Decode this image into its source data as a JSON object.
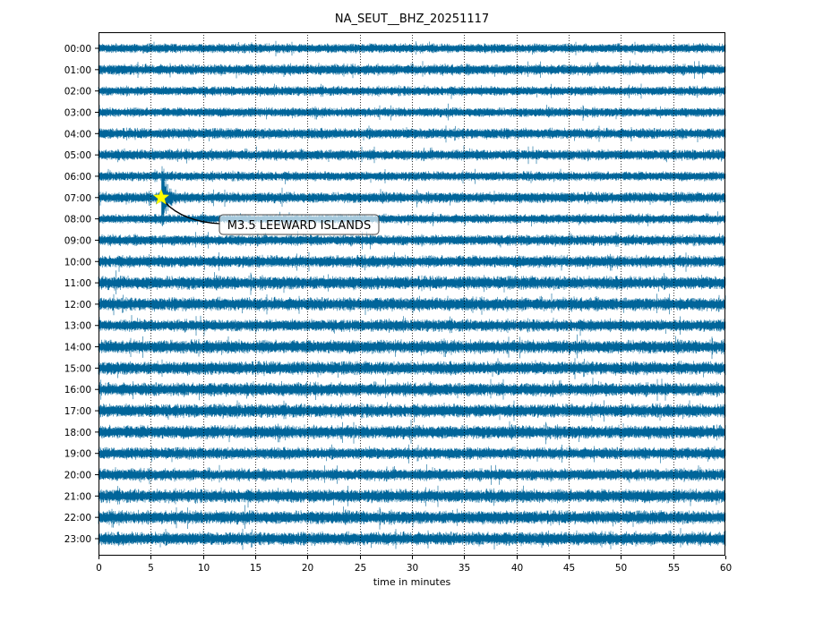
{
  "chart_data": {
    "type": "line",
    "subtype": "helicorder-dayplot",
    "title": "NA_SEUT__BHZ_20251117",
    "xlabel": "time in minutes",
    "ylabel": "",
    "xlim": [
      0,
      60
    ],
    "xticks": [
      0,
      5,
      10,
      15,
      20,
      25,
      30,
      35,
      40,
      45,
      50,
      55,
      60
    ],
    "grid": "vertical-dotted",
    "rows": [
      "00:00",
      "01:00",
      "02:00",
      "03:00",
      "04:00",
      "05:00",
      "06:00",
      "07:00",
      "08:00",
      "09:00",
      "10:00",
      "11:00",
      "12:00",
      "13:00",
      "14:00",
      "15:00",
      "16:00",
      "17:00",
      "18:00",
      "19:00",
      "20:00",
      "21:00",
      "22:00",
      "23:00"
    ],
    "row_noise_level": [
      0.7,
      0.8,
      0.7,
      0.7,
      0.8,
      0.8,
      0.7,
      0.8,
      0.7,
      0.8,
      0.9,
      1.0,
      1.0,
      0.9,
      1.0,
      1.0,
      1.0,
      1.0,
      1.0,
      0.9,
      0.9,
      1.0,
      1.0,
      1.0
    ],
    "trace_color": "#00659a",
    "event": {
      "label": "M3.5 LEEWARD ISLANDS",
      "row": "07:00",
      "minute": 6,
      "marker_color": "#ffff00"
    }
  }
}
